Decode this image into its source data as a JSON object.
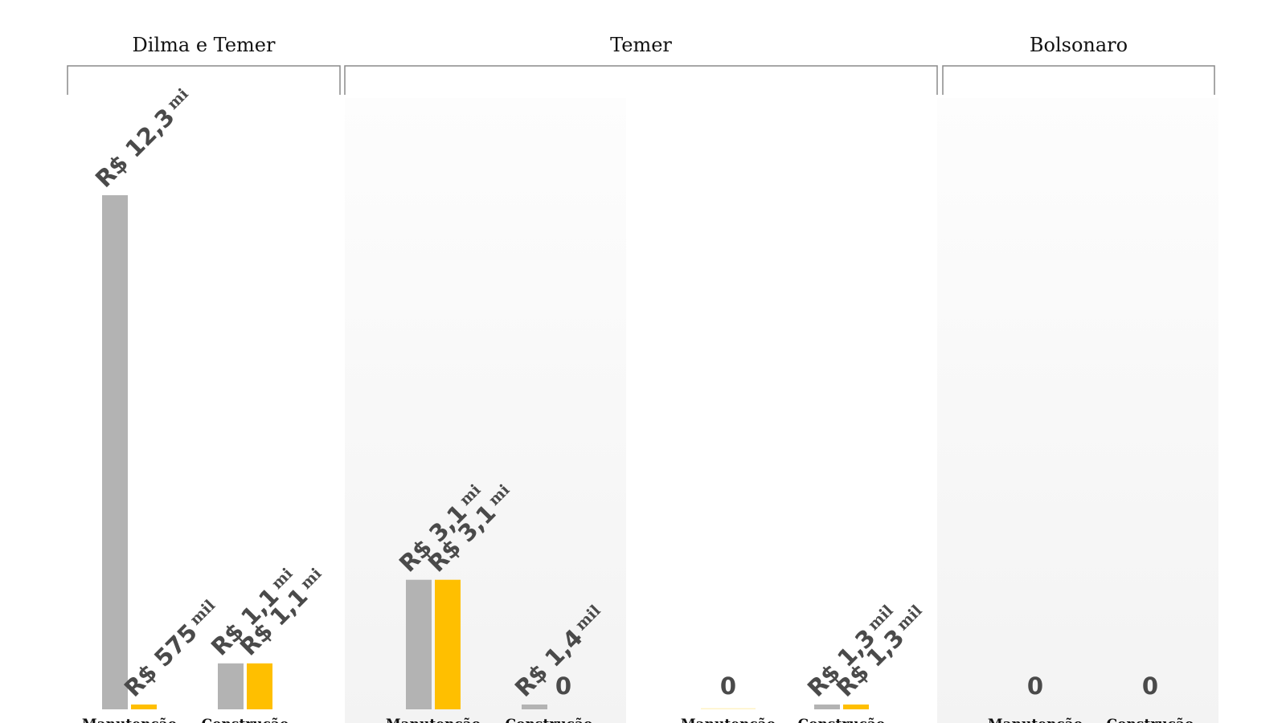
{
  "chart_data": {
    "type": "bar",
    "colors": {
      "series_0": "#b3b3b3",
      "series_1": "#ffbf00",
      "text": "#4a4a4a",
      "bracket": "#8a8a8a"
    },
    "periods": [
      {
        "label": "Dilma e Temer",
        "groups": [
          {
            "category": "Manutenção",
            "bars": [
              {
                "value": 12.3,
                "label": "R$ 12,3",
                "unit": "mi"
              },
              {
                "value": 0.575,
                "label": "R$ 575",
                "unit": "mil"
              }
            ]
          },
          {
            "category": "Construção",
            "bars": [
              {
                "value": 1.1,
                "label": "R$ 1,1",
                "unit": "mi"
              },
              {
                "value": 1.1,
                "label": "R$ 1,1",
                "unit": "mi"
              }
            ]
          }
        ]
      },
      {
        "label": "Temer",
        "groups": [
          {
            "category": "Manutenção",
            "bars": [
              {
                "value": 3.1,
                "label": "R$ 3,1",
                "unit": "mi"
              },
              {
                "value": 3.1,
                "label": "R$ 3,1",
                "unit": "mi"
              }
            ]
          },
          {
            "category": "Construção",
            "bars": [
              {
                "value": 1.4,
                "label": "R$ 1,4",
                "unit": "mil"
              },
              {
                "value": 0,
                "label": "0",
                "unit": ""
              }
            ]
          },
          {
            "category": "Manutenção",
            "bars": [
              {
                "value": 0,
                "label": "0",
                "unit": ""
              }
            ]
          },
          {
            "category": "Construção",
            "bars": [
              {
                "value": 1.3,
                "label": "R$ 1,3",
                "unit": "mil"
              },
              {
                "value": 1.3,
                "label": "R$ 1,3",
                "unit": "mil"
              }
            ]
          }
        ]
      },
      {
        "label": "Bolsonaro",
        "groups": [
          {
            "category": "Manutenção",
            "bars": [
              {
                "value": 0,
                "label": "0",
                "unit": ""
              }
            ]
          },
          {
            "category": "Construção",
            "bars": [
              {
                "value": 0,
                "label": "0",
                "unit": ""
              }
            ]
          }
        ]
      }
    ]
  }
}
